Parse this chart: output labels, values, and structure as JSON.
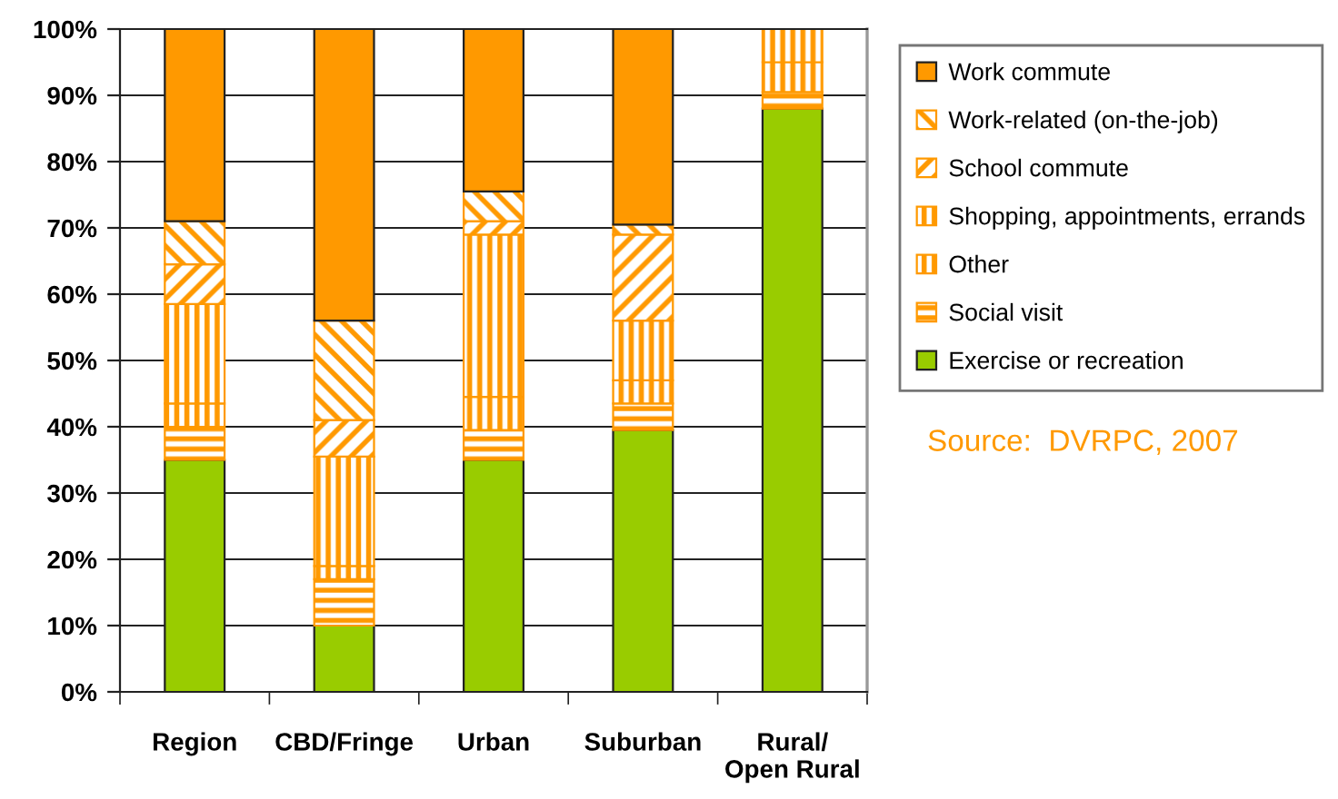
{
  "chart_data": {
    "type": "bar",
    "stacked": true,
    "categories": [
      "Region",
      "CBD/Fringe",
      "Urban",
      "Suburban",
      "Rural/\nOpen Rural"
    ],
    "series": [
      {
        "name": "Exercise or recreation",
        "color": "#99cc00",
        "values": [
          35,
          10,
          35,
          39.5,
          88
        ]
      },
      {
        "name": "Social visit",
        "color": "#ff9900",
        "values": [
          5,
          7,
          4.5,
          4,
          2.5
        ]
      },
      {
        "name": "Other",
        "color": "#ff9900",
        "values": [
          3.5,
          2,
          5,
          3.5,
          4.5
        ]
      },
      {
        "name": "Shopping, appointments, errands",
        "color": "#ff9900",
        "values": [
          15,
          16.5,
          24.5,
          9,
          5
        ]
      },
      {
        "name": "School commute",
        "color": "#ff9900",
        "values": [
          6,
          5.5,
          2,
          13,
          0
        ]
      },
      {
        "name": "Work-related (on-the-job)",
        "color": "#ff9900",
        "values": [
          6.5,
          15,
          4.5,
          1.5,
          0
        ]
      },
      {
        "name": "Work commute",
        "color": "#ff9900",
        "values": [
          29,
          44,
          24.5,
          29.5,
          0
        ]
      }
    ],
    "ylim": [
      0,
      100
    ],
    "yticks": [
      {
        "value": 0,
        "label": "0%"
      },
      {
        "value": 10,
        "label": "10%"
      },
      {
        "value": 20,
        "label": "20%"
      },
      {
        "value": 30,
        "label": "30%"
      },
      {
        "value": 40,
        "label": "40%"
      },
      {
        "value": 50,
        "label": "50%"
      },
      {
        "value": 60,
        "label": "60%"
      },
      {
        "value": 70,
        "label": "70%"
      },
      {
        "value": 80,
        "label": "80%"
      },
      {
        "value": 90,
        "label": "90%"
      },
      {
        "value": 100,
        "label": "100%"
      }
    ],
    "grid": "y",
    "legend": "top right",
    "annotations": [
      "Source:  DVRPC, 2007"
    ]
  }
}
